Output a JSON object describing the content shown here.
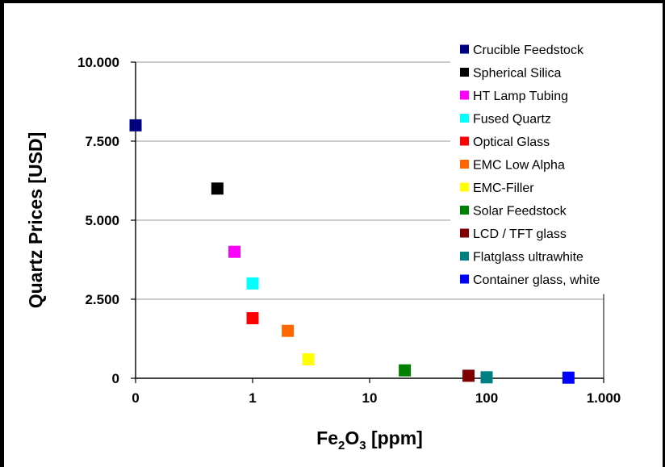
{
  "chart_data": {
    "type": "scatter",
    "title": "",
    "ylabel": "Quartz Prices [USD]",
    "xlabel": {
      "main": "Fe",
      "sub1": "2",
      "mid": "O",
      "sub2": "3",
      "tail": " [ppm]"
    },
    "x_scale": "log",
    "xlim": [
      0.1,
      1000
    ],
    "ylim": [
      0,
      10000
    ],
    "x_ticks": [
      {
        "value": 0.1,
        "label": "0"
      },
      {
        "value": 1,
        "label": "1"
      },
      {
        "value": 10,
        "label": "10"
      },
      {
        "value": 100,
        "label": "100"
      },
      {
        "value": 1000,
        "label": "1.000"
      }
    ],
    "y_ticks": [
      {
        "value": 0,
        "label": "0"
      },
      {
        "value": 2500,
        "label": "2.500"
      },
      {
        "value": 5000,
        "label": "5.000"
      },
      {
        "value": 7500,
        "label": "7.500"
      },
      {
        "value": 10000,
        "label": "10.000"
      }
    ],
    "grid": "horizontal",
    "legend_position": "right",
    "series": [
      {
        "name": "Crucible Feedstock",
        "color": "#000080",
        "x": 0.1,
        "y": 8000
      },
      {
        "name": "Spherical Silica",
        "color": "#000000",
        "x": 0.5,
        "y": 6000
      },
      {
        "name": "HT Lamp Tubing",
        "color": "#ff00ff",
        "x": 0.7,
        "y": 4000
      },
      {
        "name": "Fused Quartz",
        "color": "#00ffff",
        "x": 1,
        "y": 3000
      },
      {
        "name": "Optical Glass",
        "color": "#ff0000",
        "x": 1,
        "y": 1900
      },
      {
        "name": "EMC Low Alpha",
        "color": "#ff6600",
        "x": 2,
        "y": 1500
      },
      {
        "name": "EMC-Filler",
        "color": "#ffff00",
        "x": 3,
        "y": 600
      },
      {
        "name": "Solar Feedstock",
        "color": "#008000",
        "x": 20,
        "y": 250
      },
      {
        "name": "LCD / TFT glass",
        "color": "#800000",
        "x": 70,
        "y": 80
      },
      {
        "name": "Flatglass ultrawhite",
        "color": "#008080",
        "x": 100,
        "y": 30
      },
      {
        "name": "Container glass, white",
        "color": "#0000ff",
        "x": 500,
        "y": 20
      }
    ]
  }
}
